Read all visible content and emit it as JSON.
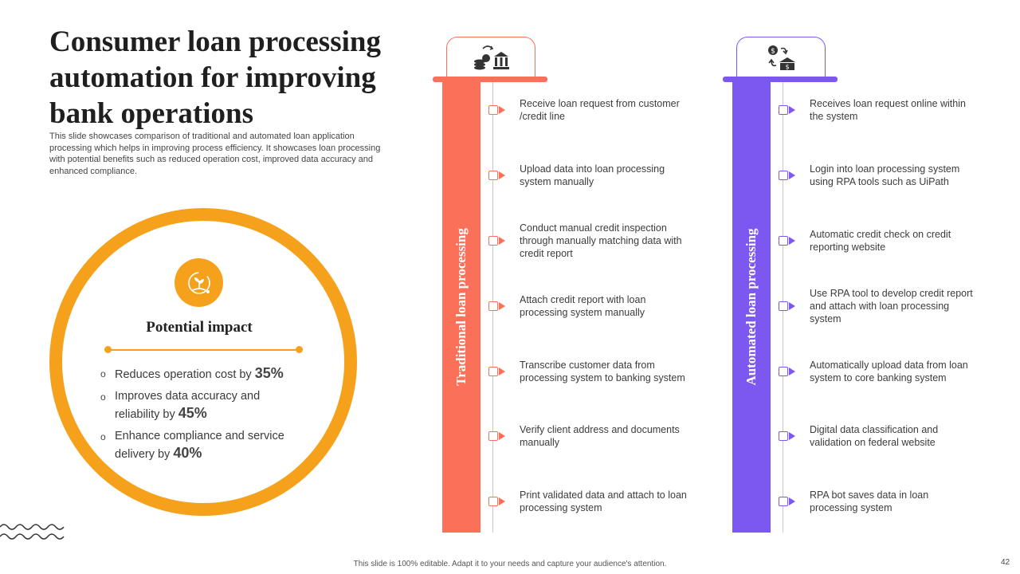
{
  "slide": {
    "title": "Consumer loan processing automation for improving bank operations",
    "subtitle": "This slide showcases comparison of traditional and automated loan application processing which helps in improving process efficiency. It showcases loan processing with potential benefits such as reduced operation cost, improved data accuracy and enhanced compliance.",
    "footer": "This slide is 100% editable. Adapt it to your needs and capture your audience's attention.",
    "page_number": "42"
  },
  "impact": {
    "title": "Potential impact",
    "icon": "growth-hand-icon",
    "bullets": [
      {
        "text": "Reduces operation cost by",
        "value": "35%"
      },
      {
        "text": "Improves data accuracy and reliability by",
        "value": "45%"
      },
      {
        "text": "Enhance compliance and service delivery by",
        "value": "40%"
      }
    ]
  },
  "colors": {
    "orange": "#f6a11c",
    "coral": "#fb7059",
    "purple": "#7d58f0"
  },
  "traditional": {
    "label": "Traditional loan processing",
    "icon": "coins-bank-icon",
    "steps": [
      "Receive loan request from customer /credit line",
      "Upload data into loan processing system manually",
      "Conduct manual credit inspection through manually matching data with credit report",
      "Attach credit report with loan processing system manually",
      "Transcribe customer data from processing system to banking system",
      "Verify client address and documents manually",
      "Print validated data and attach to loan processing system"
    ]
  },
  "automated": {
    "label": "Automated loan processing",
    "icon": "money-bank-exchange-icon",
    "steps": [
      "Receives loan request online within the system",
      "Login into loan processing system using RPA tools such as UiPath",
      "Automatic credit check on credit reporting website",
      "Use RPA tool to develop credit report and attach with loan processing system",
      "Automatically upload data from loan system to core banking system",
      "Digital data classification and validation on federal website",
      "RPA bot saves data in loan processing system"
    ]
  }
}
